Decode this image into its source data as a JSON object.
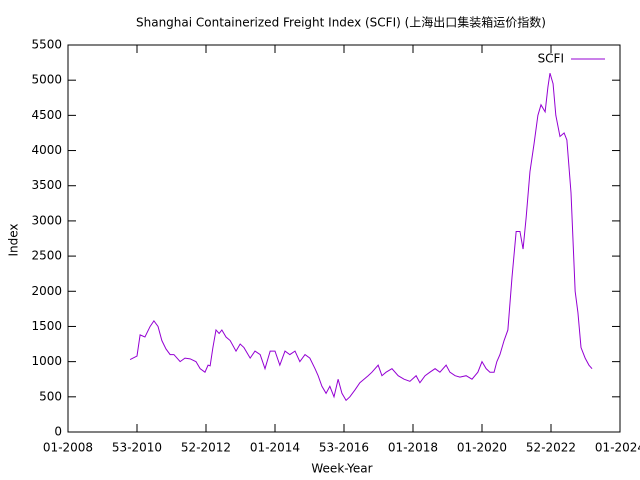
{
  "chart_data": {
    "type": "line",
    "title": "Shanghai Containerized Freight Index (SCFI) (上海出口集装箱运价指数)",
    "x_label": "Week-Year",
    "y_label": "Index",
    "legend_position": "top-right",
    "xlim": [
      2008,
      2024
    ],
    "ylim": [
      0,
      5500
    ],
    "xticks": [
      {
        "value": 2008,
        "label": "01-2008"
      },
      {
        "value": 2010,
        "label": "53-2010"
      },
      {
        "value": 2012,
        "label": "52-2012"
      },
      {
        "value": 2014,
        "label": "01-2014"
      },
      {
        "value": 2016,
        "label": "53-2016"
      },
      {
        "value": 2018,
        "label": "01-2018"
      },
      {
        "value": 2020,
        "label": "01-2020"
      },
      {
        "value": 2022,
        "label": "52-2022"
      },
      {
        "value": 2024,
        "label": "01-2024"
      }
    ],
    "yticks": [
      0,
      500,
      1000,
      1500,
      2000,
      2500,
      3000,
      3500,
      4000,
      4500,
      5000,
      5500
    ],
    "x": [
      2009.8,
      2010.0,
      2010.09,
      2010.23,
      2010.38,
      2010.49,
      2010.61,
      2010.72,
      2010.84,
      2010.96,
      2011.07,
      2011.25,
      2011.39,
      2011.54,
      2011.71,
      2011.83,
      2011.97,
      2012.06,
      2012.12,
      2012.2,
      2012.29,
      2012.38,
      2012.46,
      2012.58,
      2012.7,
      2012.87,
      2012.99,
      2013.1,
      2013.28,
      2013.42,
      2013.57,
      2013.71,
      2013.86,
      2014.0,
      2014.14,
      2014.29,
      2014.43,
      2014.58,
      2014.72,
      2014.87,
      2015.01,
      2015.16,
      2015.25,
      2015.36,
      2015.48,
      2015.59,
      2015.71,
      2015.83,
      2015.94,
      2016.06,
      2016.17,
      2016.32,
      2016.46,
      2016.58,
      2016.7,
      2016.81,
      2016.99,
      2017.1,
      2017.22,
      2017.39,
      2017.57,
      2017.74,
      2017.91,
      2018.09,
      2018.2,
      2018.35,
      2018.49,
      2018.64,
      2018.78,
      2018.96,
      2019.07,
      2019.22,
      2019.36,
      2019.54,
      2019.71,
      2019.88,
      2020.0,
      2020.12,
      2020.23,
      2020.35,
      2020.43,
      2020.52,
      2020.64,
      2020.75,
      2020.87,
      2020.99,
      2021.1,
      2021.19,
      2021.28,
      2021.39,
      2021.51,
      2021.62,
      2021.71,
      2021.83,
      2021.91,
      2021.97,
      2022.06,
      2022.14,
      2022.26,
      2022.38,
      2022.46,
      2022.58,
      2022.7,
      2022.78,
      2022.87,
      2022.99,
      2023.1,
      2023.19
    ],
    "series": [
      {
        "name": "SCFI",
        "color": "#9400d3",
        "values": [
          1030,
          1080,
          1380,
          1350,
          1500,
          1580,
          1500,
          1300,
          1180,
          1100,
          1100,
          1000,
          1050,
          1040,
          1000,
          900,
          850,
          950,
          940,
          1200,
          1450,
          1400,
          1450,
          1350,
          1300,
          1150,
          1250,
          1200,
          1050,
          1150,
          1100,
          900,
          1150,
          1150,
          950,
          1150,
          1100,
          1150,
          1000,
          1100,
          1050,
          900,
          800,
          650,
          550,
          650,
          500,
          750,
          550,
          450,
          500,
          600,
          700,
          750,
          800,
          850,
          950,
          800,
          850,
          900,
          800,
          750,
          720,
          800,
          700,
          800,
          850,
          900,
          850,
          950,
          850,
          800,
          780,
          800,
          750,
          850,
          1000,
          900,
          850,
          850,
          1000,
          1100,
          1300,
          1450,
          2200,
          2850,
          2850,
          2600,
          3050,
          3700,
          4100,
          4500,
          4650,
          4550,
          4900,
          5100,
          4950,
          4500,
          4200,
          4250,
          4150,
          3400,
          2000,
          1700,
          1200,
          1050,
          950,
          900
        ]
      }
    ]
  }
}
